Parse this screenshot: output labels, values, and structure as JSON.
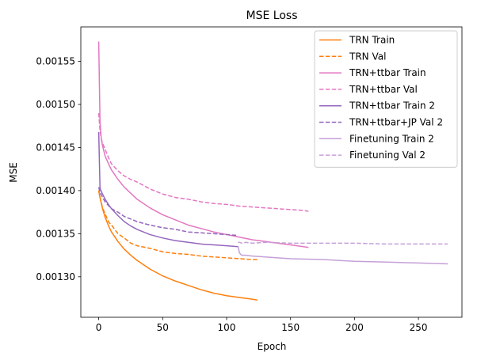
{
  "chart_data": {
    "type": "line",
    "title": "MSE Loss",
    "xlabel": "Epoch",
    "ylabel": "MSE",
    "xlim": [
      -14,
      284
    ],
    "ylim": [
      0.001253,
      0.00159
    ],
    "xticks": [
      0,
      50,
      100,
      150,
      200,
      250
    ],
    "xtick_labels": [
      "0",
      "50",
      "100",
      "150",
      "200",
      "250"
    ],
    "yticks": [
      0.0013,
      0.00135,
      0.0014,
      0.00145,
      0.0015,
      0.00155
    ],
    "ytick_labels": [
      "0.00130",
      "0.00135",
      "0.00140",
      "0.00145",
      "0.00150",
      "0.00155"
    ],
    "grid": false,
    "legend_position": "top-right",
    "series": [
      {
        "name": "TRN Train",
        "color": "#ff7f0e",
        "style": "solid",
        "x": [
          0,
          1,
          2,
          3,
          5,
          8,
          10,
          15,
          20,
          25,
          30,
          40,
          50,
          60,
          70,
          80,
          90,
          100,
          110,
          120,
          124
        ],
        "y": [
          0.0014,
          0.001392,
          0.001385,
          0.001379,
          0.001369,
          0.001358,
          0.001352,
          0.001341,
          0.001332,
          0.001325,
          0.001319,
          0.001309,
          0.001301,
          0.001295,
          0.00129,
          0.001285,
          0.001281,
          0.001278,
          0.001276,
          0.001274,
          0.001273
        ]
      },
      {
        "name": "TRN Val",
        "color": "#ff7f0e",
        "style": "dashed",
        "x": [
          0,
          1,
          2,
          3,
          5,
          8,
          10,
          15,
          20,
          25,
          30,
          40,
          50,
          60,
          70,
          80,
          90,
          100,
          110,
          120,
          124
        ],
        "y": [
          0.0014,
          0.001392,
          0.001386,
          0.00138,
          0.001373,
          0.001363,
          0.00136,
          0.00135,
          0.001345,
          0.001339,
          0.001336,
          0.001333,
          0.001329,
          0.001327,
          0.001326,
          0.001324,
          0.001323,
          0.001322,
          0.001321,
          0.00132,
          0.00132
        ]
      },
      {
        "name": "TRN+ttbar Train",
        "color": "#e377c2",
        "style": "solid",
        "x": [
          0,
          1,
          2,
          3,
          5,
          8,
          10,
          15,
          20,
          25,
          30,
          40,
          50,
          60,
          70,
          80,
          90,
          100,
          110,
          120,
          130,
          140,
          150,
          160,
          164
        ],
        "y": [
          0.001573,
          0.00148,
          0.00146,
          0.001452,
          0.00144,
          0.00143,
          0.001424,
          0.001413,
          0.001404,
          0.001397,
          0.00139,
          0.00138,
          0.001372,
          0.001366,
          0.00136,
          0.001356,
          0.001352,
          0.001349,
          0.001346,
          0.001343,
          0.001341,
          0.001339,
          0.001337,
          0.001335,
          0.001334
        ]
      },
      {
        "name": "TRN+ttbar Val",
        "color": "#e377c2",
        "style": "dashed",
        "x": [
          0,
          1,
          2,
          3,
          5,
          8,
          10,
          15,
          20,
          25,
          30,
          40,
          50,
          60,
          70,
          80,
          90,
          100,
          110,
          120,
          130,
          140,
          150,
          160,
          164
        ],
        "y": [
          0.00149,
          0.00147,
          0.00146,
          0.001455,
          0.001448,
          0.001437,
          0.001431,
          0.001423,
          0.001417,
          0.001413,
          0.00141,
          0.001402,
          0.001396,
          0.001392,
          0.00139,
          0.001387,
          0.001385,
          0.001384,
          0.001382,
          0.001381,
          0.00138,
          0.001379,
          0.001378,
          0.001377,
          0.001376
        ]
      },
      {
        "name": "TRN+ttbar Train 2",
        "color": "#9467bd",
        "style": "solid",
        "x": [
          0,
          1,
          2,
          3,
          5,
          8,
          10,
          15,
          20,
          25,
          30,
          40,
          50,
          60,
          70,
          80,
          90,
          100,
          109
        ],
        "y": [
          0.001468,
          0.001403,
          0.001399,
          0.001396,
          0.00139,
          0.001383,
          0.001379,
          0.001371,
          0.001364,
          0.001359,
          0.001355,
          0.001349,
          0.001345,
          0.001342,
          0.00134,
          0.001338,
          0.001337,
          0.001336,
          0.001335
        ]
      },
      {
        "name": "TRN+ttbar+JP Val 2",
        "color": "#9467bd",
        "style": "dashed",
        "x": [
          0,
          1,
          2,
          3,
          5,
          8,
          10,
          15,
          20,
          25,
          30,
          40,
          50,
          60,
          70,
          80,
          90,
          100,
          109
        ],
        "y": [
          0.001404,
          0.001398,
          0.001395,
          0.001392,
          0.001387,
          0.001382,
          0.001379,
          0.001375,
          0.00137,
          0.001367,
          0.001364,
          0.00136,
          0.001357,
          0.001355,
          0.001352,
          0.001351,
          0.00135,
          0.001349,
          0.001348
        ]
      },
      {
        "name": "Finetuning Train 2",
        "color": "#c5a0d8",
        "style": "solid",
        "x": [
          109,
          110,
          111,
          112,
          115,
          120,
          130,
          150,
          175,
          200,
          225,
          250,
          273
        ],
        "y": [
          0.001335,
          0.001328,
          0.001326,
          0.001325,
          0.001325,
          0.001324,
          0.001323,
          0.001321,
          0.00132,
          0.001318,
          0.001317,
          0.001316,
          0.001315
        ]
      },
      {
        "name": "Finetuning Val 2",
        "color": "#c5a0d8",
        "style": "dashed",
        "x": [
          109,
          110,
          112,
          115,
          120,
          130,
          150,
          175,
          200,
          225,
          250,
          273
        ],
        "y": [
          0.00134,
          0.00134,
          0.001339,
          0.00134,
          0.001339,
          0.00134,
          0.001339,
          0.001339,
          0.001339,
          0.001338,
          0.001338,
          0.001338
        ]
      }
    ]
  }
}
